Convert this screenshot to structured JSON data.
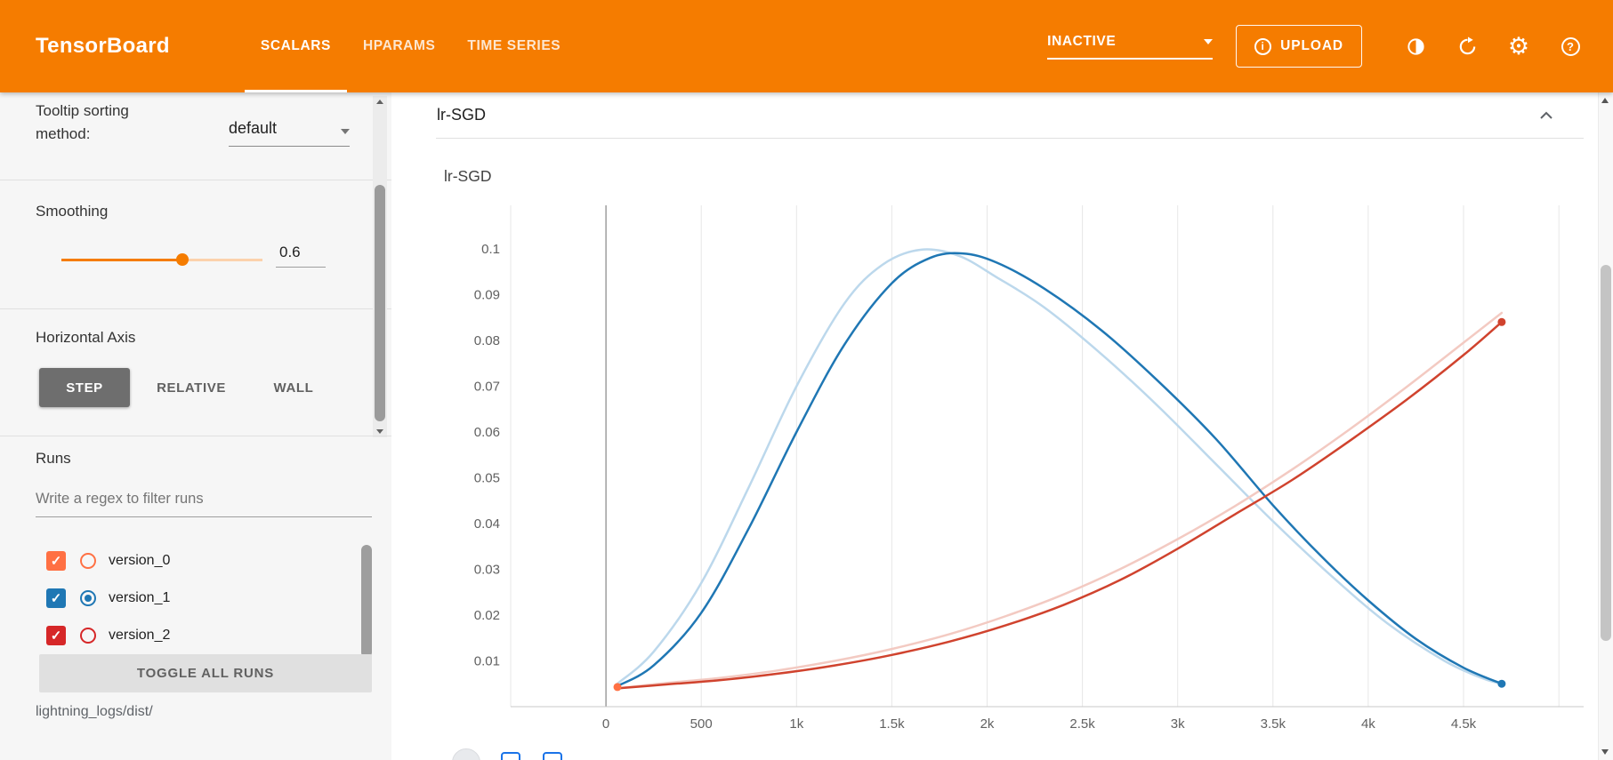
{
  "header": {
    "logo": "TensorBoard",
    "tabs": [
      {
        "label": "SCALARS",
        "active": true
      },
      {
        "label": "HPARAMS",
        "active": false
      },
      {
        "label": "TIME SERIES",
        "active": false
      }
    ],
    "status": "INACTIVE",
    "upload_label": "UPLOAD",
    "icons": [
      "dark-mode-icon",
      "refresh-icon",
      "settings-icon",
      "help-icon"
    ],
    "colors": {
      "header_bg": "#f57c00"
    }
  },
  "sidebar": {
    "tooltip_sorting_label": "Tooltip sorting method:",
    "tooltip_sorting_value": "default",
    "smoothing_label": "Smoothing",
    "smoothing_value": "0.6",
    "smoothing_percent": 60,
    "horizontal_axis_label": "Horizontal Axis",
    "axis_options": [
      {
        "label": "STEP",
        "active": true
      },
      {
        "label": "RELATIVE",
        "active": false
      },
      {
        "label": "WALL",
        "active": false
      }
    ],
    "runs_label": "Runs",
    "runs_filter_placeholder": "Write a regex to filter runs",
    "runs": [
      {
        "name": "version_0",
        "color": "#ff7043",
        "checked": true,
        "selected": false
      },
      {
        "name": "version_1",
        "color": "#1f77b4",
        "checked": true,
        "selected": true
      },
      {
        "name": "version_2",
        "color": "#d62728",
        "checked": true,
        "selected": false
      }
    ],
    "toggle_all_label": "TOGGLE ALL RUNS",
    "log_path": "lightning_logs/dist/"
  },
  "main": {
    "card_title": "lr-SGD"
  },
  "chart_data": {
    "type": "line",
    "title": "lr-SGD",
    "xlim": [
      -500,
      5130
    ],
    "ylim": [
      0,
      0.1095
    ],
    "zero_line_x": 0,
    "grid": "vertical",
    "x_ticks": [
      {
        "value": -500,
        "label": ""
      },
      {
        "value": 0,
        "label": "0"
      },
      {
        "value": 500,
        "label": "500"
      },
      {
        "value": 1000,
        "label": "1k"
      },
      {
        "value": 1500,
        "label": "1.5k"
      },
      {
        "value": 2000,
        "label": "2k"
      },
      {
        "value": 2500,
        "label": "2.5k"
      },
      {
        "value": 3000,
        "label": "3k"
      },
      {
        "value": 3500,
        "label": "3.5k"
      },
      {
        "value": 4000,
        "label": "4k"
      },
      {
        "value": 4500,
        "label": "4.5k"
      },
      {
        "value": 5000,
        "label": ""
      }
    ],
    "y_ticks": [
      0.01,
      0.02,
      0.03,
      0.04,
      0.05,
      0.06,
      0.07,
      0.08,
      0.09,
      0.1
    ],
    "series": [
      {
        "name": "version_1 (original)",
        "run": "version_1",
        "color": "#bcd8ec",
        "width": 2.5,
        "points": [
          [
            60,
            0.005
          ],
          [
            250,
            0.012
          ],
          [
            500,
            0.027
          ],
          [
            750,
            0.048
          ],
          [
            1000,
            0.07
          ],
          [
            1250,
            0.088
          ],
          [
            1450,
            0.0965
          ],
          [
            1650,
            0.0998
          ],
          [
            1850,
            0.0985
          ],
          [
            2050,
            0.0938
          ],
          [
            2300,
            0.0872
          ],
          [
            2600,
            0.077
          ],
          [
            2900,
            0.0655
          ],
          [
            3200,
            0.053
          ],
          [
            3500,
            0.0405
          ],
          [
            3800,
            0.0288
          ],
          [
            4100,
            0.0182
          ],
          [
            4400,
            0.01
          ],
          [
            4600,
            0.0062
          ],
          [
            4700,
            0.005
          ]
        ]
      },
      {
        "name": "version_2 (original)",
        "run": "version_2",
        "color": "#f3cac2",
        "width": 2.5,
        "points": [
          [
            60,
            0.004
          ],
          [
            300,
            0.0051
          ],
          [
            600,
            0.0063
          ],
          [
            900,
            0.0079
          ],
          [
            1200,
            0.01
          ],
          [
            1500,
            0.0126
          ],
          [
            1800,
            0.0158
          ],
          [
            2100,
            0.0198
          ],
          [
            2400,
            0.0245
          ],
          [
            2700,
            0.0301
          ],
          [
            3000,
            0.0366
          ],
          [
            3300,
            0.0438
          ],
          [
            3600,
            0.0518
          ],
          [
            3900,
            0.0605
          ],
          [
            4200,
            0.0698
          ],
          [
            4500,
            0.0795
          ],
          [
            4700,
            0.086
          ]
        ]
      },
      {
        "name": "version_1 (smoothed)",
        "run": "version_1",
        "color": "#1f77b4",
        "width": 2.5,
        "end_dot": true,
        "points": [
          [
            60,
            0.0045
          ],
          [
            250,
            0.009
          ],
          [
            500,
            0.0205
          ],
          [
            750,
            0.039
          ],
          [
            1000,
            0.06
          ],
          [
            1250,
            0.079
          ],
          [
            1500,
            0.0925
          ],
          [
            1700,
            0.098
          ],
          [
            1870,
            0.099
          ],
          [
            2050,
            0.097
          ],
          [
            2300,
            0.0913
          ],
          [
            2600,
            0.0822
          ],
          [
            2900,
            0.071
          ],
          [
            3200,
            0.0585
          ],
          [
            3500,
            0.044
          ],
          [
            3750,
            0.033
          ],
          [
            4000,
            0.0232
          ],
          [
            4250,
            0.0148
          ],
          [
            4500,
            0.0085
          ],
          [
            4700,
            0.005
          ]
        ]
      },
      {
        "name": "version_2 (smoothed)",
        "run": "version_2",
        "color": "#d0432e",
        "width": 2.5,
        "end_dot": true,
        "points": [
          [
            60,
            0.004
          ],
          [
            300,
            0.0048
          ],
          [
            600,
            0.0058
          ],
          [
            900,
            0.0072
          ],
          [
            1200,
            0.009
          ],
          [
            1500,
            0.0113
          ],
          [
            1800,
            0.0142
          ],
          [
            2100,
            0.0178
          ],
          [
            2400,
            0.0222
          ],
          [
            2700,
            0.0277
          ],
          [
            3000,
            0.0345
          ],
          [
            3300,
            0.042
          ],
          [
            3600,
            0.0495
          ],
          [
            3900,
            0.058
          ],
          [
            4200,
            0.067
          ],
          [
            4500,
            0.0768
          ],
          [
            4700,
            0.084
          ]
        ]
      },
      {
        "name": "version_0",
        "run": "version_0",
        "color": "#ff7043",
        "width": 2.5,
        "start_dot": true,
        "points": [
          [
            60,
            0.0043
          ]
        ]
      }
    ]
  }
}
